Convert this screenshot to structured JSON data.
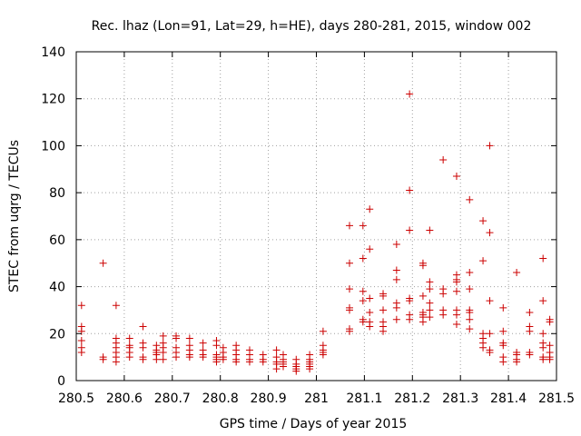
{
  "chart_data": {
    "type": "scatter",
    "title": "Rec. lhaz (Lon=91, Lat=29, h=HE), days 280-281, 2015, window 002",
    "xlabel": "GPS time / Days of year 2015",
    "ylabel": "STEC from uqrg / TECUs",
    "xlim": [
      280.5,
      281.5
    ],
    "ylim": [
      0,
      140
    ],
    "xticks": [
      "280.5",
      "280.6",
      "280.7",
      "280.8",
      "280.9",
      "281",
      "281.1",
      "281.2",
      "281.3",
      "281.4",
      "281.5"
    ],
    "xtick_values": [
      280.5,
      280.6,
      280.7,
      280.8,
      280.9,
      281.0,
      281.1,
      281.2,
      281.3,
      281.4,
      281.5
    ],
    "yticks": [
      "0",
      "20",
      "40",
      "60",
      "80",
      "100",
      "120",
      "140"
    ],
    "ytick_values": [
      0,
      20,
      40,
      60,
      80,
      100,
      120,
      140
    ],
    "grid": true,
    "marker": "+",
    "series_color": "#cc0000",
    "points": [
      [
        280.511,
        32
      ],
      [
        280.511,
        23
      ],
      [
        280.511,
        21
      ],
      [
        280.511,
        17
      ],
      [
        280.511,
        14
      ],
      [
        280.511,
        12
      ],
      [
        280.556,
        50
      ],
      [
        280.556,
        10
      ],
      [
        280.556,
        9
      ],
      [
        280.583,
        32
      ],
      [
        280.583,
        18
      ],
      [
        280.583,
        16
      ],
      [
        280.583,
        14
      ],
      [
        280.583,
        12
      ],
      [
        280.583,
        10
      ],
      [
        280.583,
        8
      ],
      [
        280.611,
        18
      ],
      [
        280.611,
        15
      ],
      [
        280.611,
        14
      ],
      [
        280.611,
        12
      ],
      [
        280.611,
        10
      ],
      [
        280.639,
        23
      ],
      [
        280.639,
        16
      ],
      [
        280.639,
        14
      ],
      [
        280.639,
        10
      ],
      [
        280.639,
        9
      ],
      [
        280.667,
        15
      ],
      [
        280.667,
        13
      ],
      [
        280.667,
        12
      ],
      [
        280.667,
        11
      ],
      [
        280.667,
        9
      ],
      [
        280.681,
        19
      ],
      [
        280.681,
        16
      ],
      [
        280.681,
        14
      ],
      [
        280.681,
        12
      ],
      [
        280.681,
        9
      ],
      [
        280.708,
        19
      ],
      [
        280.708,
        18
      ],
      [
        280.708,
        14
      ],
      [
        280.708,
        12
      ],
      [
        280.708,
        10
      ],
      [
        280.736,
        18
      ],
      [
        280.736,
        15
      ],
      [
        280.736,
        13
      ],
      [
        280.736,
        11
      ],
      [
        280.736,
        10
      ],
      [
        280.764,
        16
      ],
      [
        280.764,
        13
      ],
      [
        280.764,
        11
      ],
      [
        280.764,
        10
      ],
      [
        280.792,
        17
      ],
      [
        280.792,
        15
      ],
      [
        280.792,
        11
      ],
      [
        280.792,
        10
      ],
      [
        280.792,
        9
      ],
      [
        280.792,
        8
      ],
      [
        280.806,
        14
      ],
      [
        280.806,
        12
      ],
      [
        280.806,
        10
      ],
      [
        280.806,
        9
      ],
      [
        280.833,
        15
      ],
      [
        280.833,
        13
      ],
      [
        280.833,
        11
      ],
      [
        280.833,
        9
      ],
      [
        280.833,
        8
      ],
      [
        280.861,
        13
      ],
      [
        280.861,
        11
      ],
      [
        280.861,
        9
      ],
      [
        280.861,
        8
      ],
      [
        280.889,
        11
      ],
      [
        280.889,
        9
      ],
      [
        280.889,
        8
      ],
      [
        280.917,
        13
      ],
      [
        280.917,
        10
      ],
      [
        280.917,
        8
      ],
      [
        280.917,
        7
      ],
      [
        280.917,
        5
      ],
      [
        280.931,
        11
      ],
      [
        280.931,
        9
      ],
      [
        280.931,
        8
      ],
      [
        280.931,
        7
      ],
      [
        280.931,
        6
      ],
      [
        280.958,
        9
      ],
      [
        280.958,
        7
      ],
      [
        280.958,
        6
      ],
      [
        280.958,
        5
      ],
      [
        280.958,
        4
      ],
      [
        280.986,
        11
      ],
      [
        280.986,
        9
      ],
      [
        280.986,
        8
      ],
      [
        280.986,
        7
      ],
      [
        280.986,
        6
      ],
      [
        280.986,
        5
      ],
      [
        281.014,
        21
      ],
      [
        281.014,
        15
      ],
      [
        281.014,
        13
      ],
      [
        281.014,
        12
      ],
      [
        281.014,
        11
      ],
      [
        281.069,
        66
      ],
      [
        281.069,
        50
      ],
      [
        281.069,
        39
      ],
      [
        281.069,
        31
      ],
      [
        281.069,
        30
      ],
      [
        281.069,
        22
      ],
      [
        281.069,
        21
      ],
      [
        281.097,
        66
      ],
      [
        281.097,
        52
      ],
      [
        281.097,
        38
      ],
      [
        281.097,
        34
      ],
      [
        281.097,
        26
      ],
      [
        281.097,
        25
      ],
      [
        281.111,
        73
      ],
      [
        281.111,
        56
      ],
      [
        281.111,
        35
      ],
      [
        281.111,
        29
      ],
      [
        281.111,
        25
      ],
      [
        281.111,
        23
      ],
      [
        281.139,
        37
      ],
      [
        281.139,
        36
      ],
      [
        281.139,
        30
      ],
      [
        281.139,
        25
      ],
      [
        281.139,
        23
      ],
      [
        281.139,
        21
      ],
      [
        281.167,
        58
      ],
      [
        281.167,
        47
      ],
      [
        281.167,
        43
      ],
      [
        281.167,
        33
      ],
      [
        281.167,
        31
      ],
      [
        281.167,
        26
      ],
      [
        281.194,
        122
      ],
      [
        281.194,
        81
      ],
      [
        281.194,
        64
      ],
      [
        281.194,
        35
      ],
      [
        281.194,
        34
      ],
      [
        281.194,
        28
      ],
      [
        281.194,
        26
      ],
      [
        281.222,
        50
      ],
      [
        281.222,
        49
      ],
      [
        281.222,
        36
      ],
      [
        281.222,
        29
      ],
      [
        281.222,
        28
      ],
      [
        281.222,
        27
      ],
      [
        281.222,
        25
      ],
      [
        281.236,
        64
      ],
      [
        281.236,
        42
      ],
      [
        281.236,
        39
      ],
      [
        281.236,
        33
      ],
      [
        281.236,
        30
      ],
      [
        281.236,
        27
      ],
      [
        281.264,
        94
      ],
      [
        281.264,
        39
      ],
      [
        281.264,
        37
      ],
      [
        281.264,
        30
      ],
      [
        281.264,
        28
      ],
      [
        281.292,
        87
      ],
      [
        281.292,
        45
      ],
      [
        281.292,
        43
      ],
      [
        281.292,
        42
      ],
      [
        281.292,
        38
      ],
      [
        281.292,
        30
      ],
      [
        281.292,
        28
      ],
      [
        281.292,
        24
      ],
      [
        281.319,
        77
      ],
      [
        281.319,
        46
      ],
      [
        281.319,
        39
      ],
      [
        281.319,
        30
      ],
      [
        281.319,
        29
      ],
      [
        281.319,
        26
      ],
      [
        281.319,
        22
      ],
      [
        281.347,
        68
      ],
      [
        281.347,
        51
      ],
      [
        281.347,
        20
      ],
      [
        281.347,
        18
      ],
      [
        281.347,
        16
      ],
      [
        281.347,
        14
      ],
      [
        281.361,
        100
      ],
      [
        281.361,
        63
      ],
      [
        281.361,
        34
      ],
      [
        281.361,
        20
      ],
      [
        281.361,
        13
      ],
      [
        281.361,
        12
      ],
      [
        281.389,
        31
      ],
      [
        281.389,
        21
      ],
      [
        281.389,
        16
      ],
      [
        281.389,
        15
      ],
      [
        281.389,
        10
      ],
      [
        281.389,
        8
      ],
      [
        281.417,
        46
      ],
      [
        281.417,
        12
      ],
      [
        281.417,
        11
      ],
      [
        281.417,
        9
      ],
      [
        281.417,
        8
      ],
      [
        281.444,
        29
      ],
      [
        281.444,
        23
      ],
      [
        281.444,
        21
      ],
      [
        281.444,
        12
      ],
      [
        281.444,
        11
      ],
      [
        281.472,
        52
      ],
      [
        281.472,
        34
      ],
      [
        281.472,
        20
      ],
      [
        281.472,
        16
      ],
      [
        281.472,
        14
      ],
      [
        281.472,
        10
      ],
      [
        281.472,
        9
      ],
      [
        281.486,
        26
      ],
      [
        281.486,
        25
      ],
      [
        281.486,
        15
      ],
      [
        281.486,
        12
      ],
      [
        281.486,
        10
      ],
      [
        281.486,
        9
      ]
    ]
  }
}
